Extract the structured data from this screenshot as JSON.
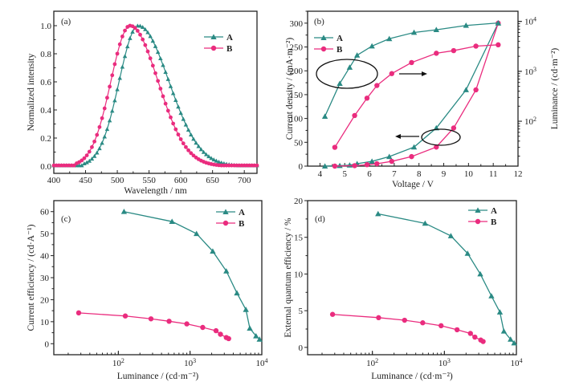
{
  "colors": {
    "A": "#2a8a84",
    "B": "#ea2c7e",
    "axis": "#222222"
  },
  "chart_data": [
    {
      "id": "a",
      "type": "line",
      "panel_label": "(a)",
      "xlabel": "Wavelength / nm",
      "ylabel": "Normalized intensity",
      "xlim": [
        400,
        720
      ],
      "ylim": [
        0,
        1.1
      ],
      "xticks": [
        400,
        450,
        500,
        550,
        600,
        650,
        700
      ],
      "yticks": [
        0.0,
        0.2,
        0.4,
        0.6,
        0.8,
        1.0
      ],
      "ytick_labels": [
        "0.0",
        "0.2",
        "0.4",
        "0.6",
        "0.8",
        "1.0"
      ],
      "legend": [
        "A",
        "B"
      ],
      "legend_position": "top-right",
      "series": [
        {
          "name": "A",
          "marker": "triangle",
          "model": {
            "peak": 533,
            "sigma_left": 30,
            "sigma_right": 48,
            "onset": 445,
            "step": 4
          }
        },
        {
          "name": "B",
          "marker": "circle",
          "model": {
            "peak": 520,
            "sigma_left": 30,
            "sigma_right": 44,
            "onset": 435,
            "step": 4
          }
        }
      ]
    },
    {
      "id": "b",
      "type": "line",
      "panel_label": "(b)",
      "xlabel": "Voltage / V",
      "ylabel": "Current density / (mA·m⁻²)",
      "y2label": "Luminance / (cd·m⁻²)",
      "xlim": [
        3.5,
        12
      ],
      "ylim": [
        0,
        325
      ],
      "y2lim": [
        12.6,
        16000
      ],
      "y2scale": "log",
      "xticks": [
        4,
        5,
        6,
        7,
        8,
        9,
        10,
        11,
        12
      ],
      "yticks": [
        0,
        50,
        100,
        150,
        200,
        250,
        300
      ],
      "y2ticks": [
        100,
        1000,
        10000
      ],
      "y2tick_labels": [
        [
          "10",
          "2"
        ],
        [
          "10",
          "3"
        ],
        [
          "10",
          "4"
        ]
      ],
      "legend": [
        "A",
        "B"
      ],
      "legend_position": "top-left",
      "annotations": [
        "ellipse with right arrow → luminance (right axis)",
        "ellipse with left arrow ← current density (left axis)"
      ],
      "series": [
        {
          "name": "A",
          "marker": "triangle",
          "axis": "left",
          "x": [
            4.2,
            4.8,
            5.2,
            5.5,
            6.1,
            6.8,
            7.8,
            8.7,
            9.9,
            11.2
          ],
          "y": [
            0,
            1,
            2,
            5,
            10,
            20,
            40,
            80,
            160,
            300
          ]
        },
        {
          "name": "B",
          "marker": "circle",
          "axis": "left",
          "x": [
            4.6,
            5.4,
            5.9,
            6.3,
            6.9,
            7.7,
            8.7,
            9.4,
            10.3,
            11.2
          ],
          "y": [
            0,
            1,
            3,
            5,
            10,
            20,
            40,
            80,
            160,
            300
          ]
        },
        {
          "name": "A",
          "marker": "triangle",
          "axis": "right",
          "x": [
            4.2,
            4.8,
            5.2,
            5.5,
            6.1,
            6.8,
            7.8,
            8.7,
            9.9,
            11.2
          ],
          "y": [
            125,
            570,
            1200,
            2100,
            3200,
            4500,
            6000,
            6800,
            8300,
            9300
          ]
        },
        {
          "name": "B",
          "marker": "circle",
          "axis": "right",
          "x": [
            4.6,
            5.4,
            5.9,
            6.3,
            6.9,
            7.7,
            8.7,
            9.4,
            10.3,
            11.2
          ],
          "y": [
            30,
            130,
            290,
            520,
            900,
            1500,
            2300,
            2600,
            3200,
            3400
          ]
        }
      ]
    },
    {
      "id": "c",
      "type": "line",
      "panel_label": "(c)",
      "xlabel": "Luminance / (cd·m⁻²)",
      "ylabel": "Current efficiency / (cd·A⁻¹)",
      "xscale": "log",
      "xlim": [
        12.6,
        10000
      ],
      "ylim": [
        -5,
        65
      ],
      "xticks": [
        100,
        1000,
        10000
      ],
      "xtick_labels": [
        [
          "10",
          "2"
        ],
        [
          "10",
          "3"
        ],
        [
          "10",
          "4"
        ]
      ],
      "yticks": [
        0,
        10,
        20,
        30,
        40,
        50,
        60
      ],
      "legend": [
        "A",
        "B"
      ],
      "legend_position": "top-right",
      "series": [
        {
          "name": "A",
          "marker": "triangle",
          "x": [
            120,
            560,
            1230,
            2070,
            3200,
            4500,
            6000,
            6800,
            8300,
            9300
          ],
          "y": [
            60,
            55.5,
            50,
            42,
            33,
            23,
            15.5,
            7,
            3.5,
            2
          ]
        },
        {
          "name": "B",
          "marker": "circle",
          "x": [
            28,
            125,
            285,
            510,
            900,
            1500,
            2300,
            2650,
            3200,
            3450
          ],
          "y": [
            14,
            12.6,
            11.3,
            10.2,
            9,
            7.4,
            5.9,
            4.3,
            2.8,
            2.3
          ]
        }
      ]
    },
    {
      "id": "d",
      "type": "line",
      "panel_label": "(d)",
      "xlabel": "Luminance / (cd·m⁻²)",
      "ylabel": "External quantum efficiency / %",
      "xscale": "log",
      "xlim": [
        12.6,
        10000
      ],
      "ylim": [
        -1,
        20
      ],
      "xticks": [
        100,
        1000,
        10000
      ],
      "xtick_labels": [
        [
          "10",
          "2"
        ],
        [
          "10",
          "3"
        ],
        [
          "10",
          "4"
        ]
      ],
      "yticks": [
        0,
        5,
        10,
        15,
        20
      ],
      "legend": [
        "A",
        "B"
      ],
      "legend_position": "top-right",
      "series": [
        {
          "name": "A",
          "marker": "triangle",
          "x": [
            120,
            540,
            1230,
            2100,
            3150,
            4500,
            5900,
            6700,
            8300,
            9300
          ],
          "y": [
            18.2,
            16.9,
            15.2,
            12.8,
            10,
            7,
            4.8,
            2.2,
            1.1,
            0.6
          ]
        },
        {
          "name": "B",
          "marker": "circle",
          "x": [
            28,
            122,
            280,
            500,
            900,
            1500,
            2300,
            2650,
            3200,
            3450
          ],
          "y": [
            4.5,
            4.05,
            3.7,
            3.35,
            2.95,
            2.4,
            1.9,
            1.4,
            1.0,
            0.8
          ]
        }
      ]
    }
  ]
}
